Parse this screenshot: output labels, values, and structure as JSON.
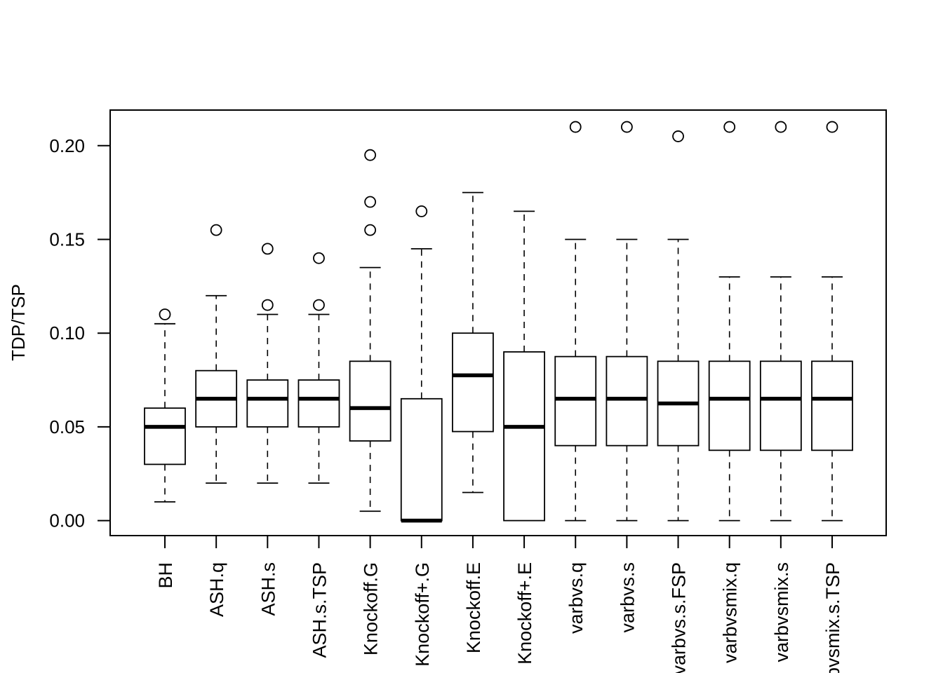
{
  "chart_data": {
    "type": "boxplot",
    "title": "",
    "xlabel": "",
    "ylabel": "TDP/TSP",
    "ylim": [
      -0.008,
      0.219
    ],
    "yticks": [
      0.0,
      0.05,
      0.1,
      0.15,
      0.2
    ],
    "ytick_labels": [
      "0.00",
      "0.05",
      "0.10",
      "0.15",
      "0.20"
    ],
    "grid": false,
    "legend": "none",
    "categories": [
      "BH",
      "ASH.q",
      "ASH.s",
      "ASH.s.TSP",
      "Knockoff.G",
      "Knockoff+.G",
      "Knockoff.E",
      "Knockoff+.E",
      "varbvs.q",
      "varbvs.s",
      "varbvs.s.FSP",
      "varbvsmix.q",
      "varbvsmix.s",
      "varbvsmix.s.TSP"
    ],
    "boxes": [
      {
        "whisker_low": 0.01,
        "q1": 0.03,
        "median": 0.05,
        "q3": 0.06,
        "whisker_high": 0.105,
        "outliers": [
          0.11
        ]
      },
      {
        "whisker_low": 0.02,
        "q1": 0.05,
        "median": 0.065,
        "q3": 0.08,
        "whisker_high": 0.12,
        "outliers": [
          0.155
        ]
      },
      {
        "whisker_low": 0.02,
        "q1": 0.05,
        "median": 0.065,
        "q3": 0.075,
        "whisker_high": 0.11,
        "outliers": [
          0.115,
          0.145
        ]
      },
      {
        "whisker_low": 0.02,
        "q1": 0.05,
        "median": 0.065,
        "q3": 0.075,
        "whisker_high": 0.11,
        "outliers": [
          0.115,
          0.14
        ]
      },
      {
        "whisker_low": 0.005,
        "q1": 0.0425,
        "median": 0.06,
        "q3": 0.085,
        "whisker_high": 0.135,
        "outliers": [
          0.155,
          0.17,
          0.195
        ]
      },
      {
        "whisker_low": 0.0,
        "q1": 0.0,
        "median": 0.0,
        "q3": 0.065,
        "whisker_high": 0.145,
        "outliers": [
          0.165
        ]
      },
      {
        "whisker_low": 0.015,
        "q1": 0.0475,
        "median": 0.0775,
        "q3": 0.1,
        "whisker_high": 0.175,
        "outliers": []
      },
      {
        "whisker_low": 0.0,
        "q1": 0.0,
        "median": 0.05,
        "q3": 0.09,
        "whisker_high": 0.165,
        "outliers": []
      },
      {
        "whisker_low": 0.0,
        "q1": 0.04,
        "median": 0.065,
        "q3": 0.0875,
        "whisker_high": 0.15,
        "outliers": [
          0.21
        ]
      },
      {
        "whisker_low": 0.0,
        "q1": 0.04,
        "median": 0.065,
        "q3": 0.0875,
        "whisker_high": 0.15,
        "outliers": [
          0.21
        ]
      },
      {
        "whisker_low": 0.0,
        "q1": 0.04,
        "median": 0.0625,
        "q3": 0.085,
        "whisker_high": 0.15,
        "outliers": [
          0.205
        ]
      },
      {
        "whisker_low": 0.0,
        "q1": 0.0375,
        "median": 0.065,
        "q3": 0.085,
        "whisker_high": 0.13,
        "outliers": [
          0.21
        ]
      },
      {
        "whisker_low": 0.0,
        "q1": 0.0375,
        "median": 0.065,
        "q3": 0.085,
        "whisker_high": 0.13,
        "outliers": [
          0.21
        ]
      },
      {
        "whisker_low": 0.0,
        "q1": 0.0375,
        "median": 0.065,
        "q3": 0.085,
        "whisker_high": 0.13,
        "outliers": [
          0.21
        ]
      }
    ]
  }
}
